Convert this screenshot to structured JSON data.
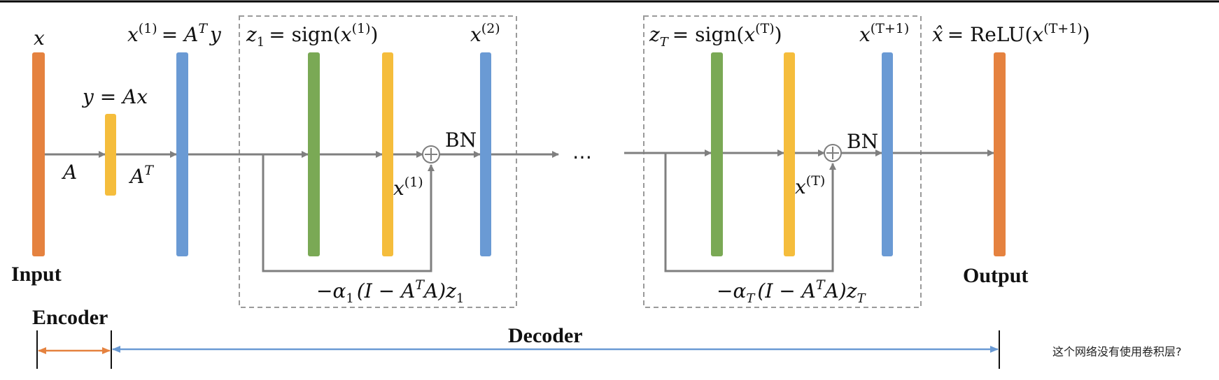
{
  "colors": {
    "orange": "#e5823f",
    "yellow": "#f5bd3c",
    "blue": "#6a9ad4",
    "green": "#7aa955",
    "arrow": "#7f7f7f",
    "dashed_box": "#9a9a9a"
  },
  "labels": {
    "x": "x",
    "y_eq": "y = Ax",
    "x1_eq_lhs": "x",
    "x1_sup": "(1)",
    "x1_eq_rhs_A": "= A",
    "x1_eq_rhs_T": "T",
    "x1_eq_rhs_y": "y",
    "z1_z": "z",
    "z1_sub": "1",
    "z1_eq": "= sign(",
    "z1_x": "x",
    "z1_sup": "(1)",
    "z1_close": ")",
    "x2": "x",
    "x2_sup": "(2)",
    "A": "A",
    "AT_A": "A",
    "AT_T": "T",
    "BN1": "BN",
    "x1_small": "x",
    "x1_small_sup": "(1)",
    "alpha1_prefix": "−α",
    "alpha1_sub": "1",
    "alpha1_mid": "(I − A",
    "alpha1_T": "T",
    "alpha1_end": "A)z",
    "alpha1_endsub": "1",
    "ellipsis": "⋯",
    "zT_z": "z",
    "zT_sub": "T",
    "zT_eq": "= sign(",
    "zT_x": "x",
    "zT_sup": "(T)",
    "zT_close": ")",
    "xT1": "x",
    "xT1_sup": "(T+1)",
    "xhat": "x̂",
    "xhat_eq": "= ReLU(",
    "xhat_x": "x",
    "xhat_sup": "(T+1)",
    "xhat_close": ")",
    "BN2": "BN",
    "xT_small": "x",
    "xT_small_sup": "(T)",
    "alphaT_prefix": "−α",
    "alphaT_sub": "T",
    "alphaT_mid": "(I − A",
    "alphaT_T": "T",
    "alphaT_end": "A)z",
    "alphaT_endsub": "T",
    "input": "Input",
    "output": "Output",
    "encoder": "Encoder",
    "decoder": "Decoder",
    "note": "这个网络没有使用卷积层?"
  }
}
